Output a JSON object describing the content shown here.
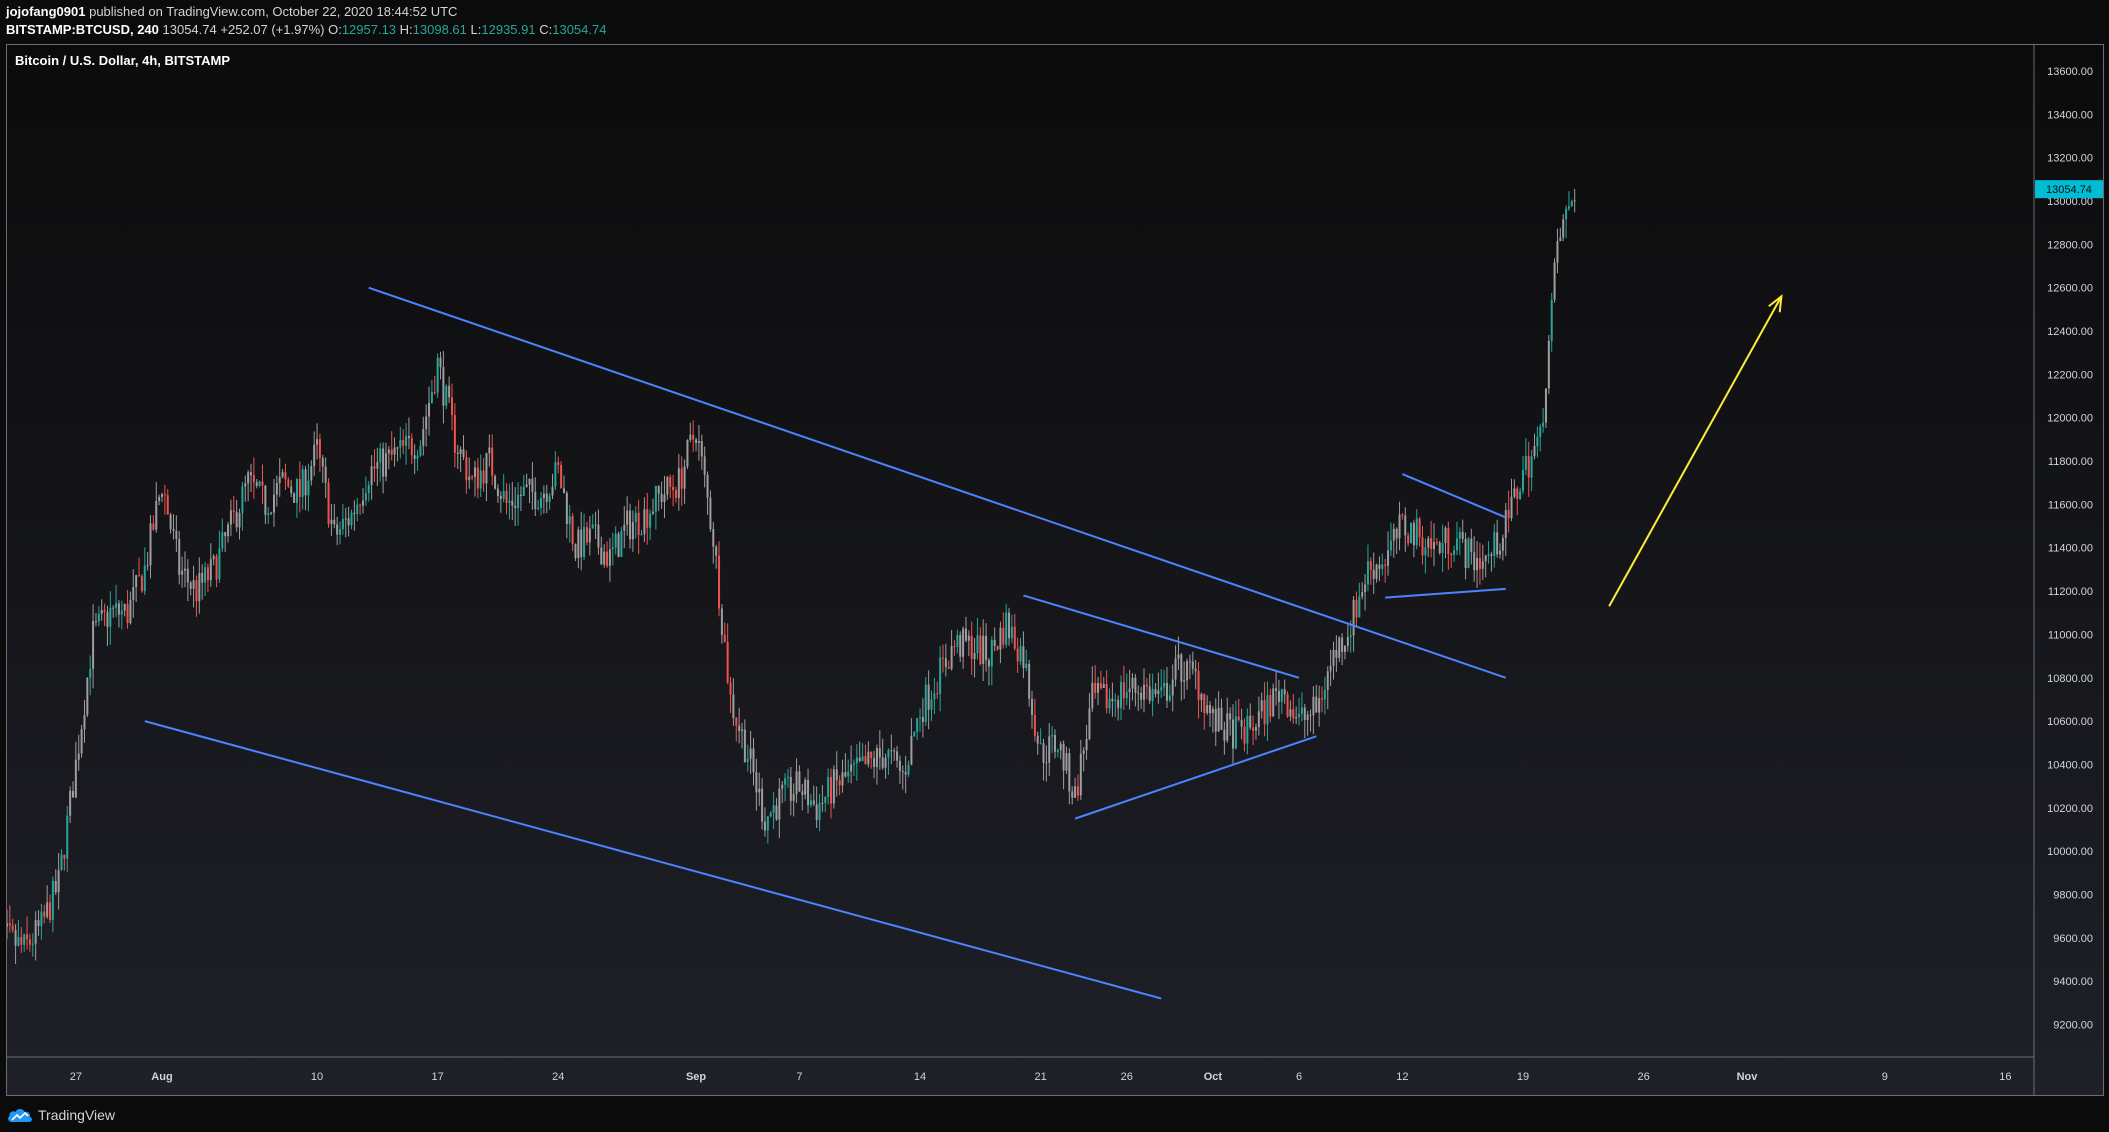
{
  "header": {
    "author": "jojofang0901",
    "published_text": "published on TradingView.com, October 22, 2020 18:44:52 UTC",
    "symbol": "BITSTAMP:BTCUSD, 240",
    "last_price": "13054.74",
    "change": "+252.07 (+1.97%)",
    "open_label": "O:",
    "open": "12957.13",
    "high_label": "H:",
    "high": "13098.61",
    "low_label": "L:",
    "low": "12935.91",
    "close_label": "C:",
    "close": "13054.74"
  },
  "footer": {
    "brand": "TradingView"
  },
  "colors": {
    "background_top": "#0b0b0b",
    "background_bottom": "#1f2028",
    "up_candle": "#26a69a",
    "down_candle": "#ef5350",
    "neutral_candle": "#9e9e9e",
    "trendline": "#4c84ff",
    "arrow": "#ffeb3b",
    "price_tag": "#00bcd4"
  },
  "chart_data": {
    "type": "candlestick",
    "title": "Bitcoin / U.S. Dollar, 4h, BITSTAMP",
    "timeframe": "4h",
    "price_label": "13054.74",
    "ylim": [
      9050,
      13720
    ],
    "y_ticks": [
      "13600.00",
      "13400.00",
      "13200.00",
      "13000.00",
      "12800.00",
      "12600.00",
      "12400.00",
      "12200.00",
      "12000.00",
      "11800.00",
      "11600.00",
      "11400.00",
      "11200.00",
      "11000.00",
      "10800.00",
      "10600.00",
      "10400.00",
      "10200.00",
      "10000.00",
      "9800.00",
      "9600.00",
      "9400.00",
      "9200.00"
    ],
    "x_ticks": [
      {
        "label": "27",
        "date": "2020-07-27"
      },
      {
        "label": "Aug",
        "date": "2020-08-01"
      },
      {
        "label": "10",
        "date": "2020-08-10"
      },
      {
        "label": "17",
        "date": "2020-08-17"
      },
      {
        "label": "24",
        "date": "2020-08-24"
      },
      {
        "label": "Sep",
        "date": "2020-09-01"
      },
      {
        "label": "7",
        "date": "2020-09-07"
      },
      {
        "label": "14",
        "date": "2020-09-14"
      },
      {
        "label": "21",
        "date": "2020-09-21"
      },
      {
        "label": "26",
        "date": "2020-09-26"
      },
      {
        "label": "Oct",
        "date": "2020-10-01"
      },
      {
        "label": "6",
        "date": "2020-10-06"
      },
      {
        "label": "12",
        "date": "2020-10-12"
      },
      {
        "label": "19",
        "date": "2020-10-19"
      },
      {
        "label": "26",
        "date": "2020-10-26"
      },
      {
        "label": "Nov",
        "date": "2020-11-01"
      },
      {
        "label": "9",
        "date": "2020-11-09"
      },
      {
        "label": "16",
        "date": "2020-11-16"
      }
    ],
    "close_path": [
      [
        "2020-07-22",
        9500
      ],
      [
        "2020-07-23",
        9600
      ],
      [
        "2020-07-24",
        9550
      ],
      [
        "2020-07-25",
        9650
      ],
      [
        "2020-07-26",
        9850
      ],
      [
        "2020-07-27",
        10400
      ],
      [
        "2020-07-28",
        11000
      ],
      [
        "2020-07-29",
        11100
      ],
      [
        "2020-07-30",
        11100
      ],
      [
        "2020-07-31",
        11300
      ],
      [
        "2020-08-01",
        11700
      ],
      [
        "2020-08-02",
        11300
      ],
      [
        "2020-08-03",
        11200
      ],
      [
        "2020-08-04",
        11300
      ],
      [
        "2020-08-05",
        11500
      ],
      [
        "2020-08-06",
        11700
      ],
      [
        "2020-08-07",
        11600
      ],
      [
        "2020-08-08",
        11700
      ],
      [
        "2020-08-09",
        11650
      ],
      [
        "2020-08-10",
        11850
      ],
      [
        "2020-08-11",
        11450
      ],
      [
        "2020-08-12",
        11550
      ],
      [
        "2020-08-13",
        11750
      ],
      [
        "2020-08-14",
        11800
      ],
      [
        "2020-08-15",
        11850
      ],
      [
        "2020-08-16",
        11900
      ],
      [
        "2020-08-17",
        12250
      ],
      [
        "2020-08-18",
        11900
      ],
      [
        "2020-08-19",
        11700
      ],
      [
        "2020-08-20",
        11800
      ],
      [
        "2020-08-21",
        11600
      ],
      [
        "2020-08-22",
        11650
      ],
      [
        "2020-08-23",
        11650
      ],
      [
        "2020-08-24",
        11750
      ],
      [
        "2020-08-25",
        11400
      ],
      [
        "2020-08-26",
        11450
      ],
      [
        "2020-08-27",
        11350
      ],
      [
        "2020-08-28",
        11500
      ],
      [
        "2020-08-29",
        11550
      ],
      [
        "2020-08-30",
        11650
      ],
      [
        "2020-08-31",
        11700
      ],
      [
        "2020-09-01",
        11950
      ],
      [
        "2020-09-02",
        11450
      ],
      [
        "2020-09-03",
        10700
      ],
      [
        "2020-09-04",
        10450
      ],
      [
        "2020-09-05",
        10150
      ],
      [
        "2020-09-06",
        10250
      ],
      [
        "2020-09-07",
        10300
      ],
      [
        "2020-09-08",
        10200
      ],
      [
        "2020-09-09",
        10300
      ],
      [
        "2020-09-10",
        10350
      ],
      [
        "2020-09-11",
        10400
      ],
      [
        "2020-09-12",
        10450
      ],
      [
        "2020-09-13",
        10350
      ],
      [
        "2020-09-14",
        10650
      ],
      [
        "2020-09-15",
        10800
      ],
      [
        "2020-09-16",
        10950
      ],
      [
        "2020-09-17",
        10950
      ],
      [
        "2020-09-18",
        10900
      ],
      [
        "2020-09-19",
        11050
      ],
      [
        "2020-09-20",
        10900
      ],
      [
        "2020-09-21",
        10450
      ],
      [
        "2020-09-22",
        10500
      ],
      [
        "2020-09-23",
        10250
      ],
      [
        "2020-09-24",
        10700
      ],
      [
        "2020-09-25",
        10700
      ],
      [
        "2020-09-26",
        10750
      ],
      [
        "2020-09-27",
        10750
      ],
      [
        "2020-09-28",
        10700
      ],
      [
        "2020-09-29",
        10850
      ],
      [
        "2020-09-30",
        10800
      ],
      [
        "2020-10-01",
        10600
      ],
      [
        "2020-10-02",
        10550
      ],
      [
        "2020-10-03",
        10550
      ],
      [
        "2020-10-04",
        10650
      ],
      [
        "2020-10-05",
        10750
      ],
      [
        "2020-10-06",
        10600
      ],
      [
        "2020-10-07",
        10650
      ],
      [
        "2020-10-08",
        10900
      ],
      [
        "2020-10-09",
        11050
      ],
      [
        "2020-10-10",
        11300
      ],
      [
        "2020-10-11",
        11350
      ],
      [
        "2020-10-12",
        11500
      ],
      [
        "2020-10-13",
        11450
      ],
      [
        "2020-10-14",
        11400
      ],
      [
        "2020-10-15",
        11450
      ],
      [
        "2020-10-16",
        11350
      ],
      [
        "2020-10-17",
        11350
      ],
      [
        "2020-10-18",
        11500
      ],
      [
        "2020-10-19",
        11750
      ],
      [
        "2020-10-20",
        11900
      ],
      [
        "2020-10-21",
        12800
      ],
      [
        "2020-10-22",
        13054
      ]
    ],
    "annotations": [
      {
        "type": "trendline",
        "name": "upper channel",
        "points": [
          [
            "2020-08-13",
            12600
          ],
          [
            "2020-10-18",
            10800
          ]
        ]
      },
      {
        "type": "trendline",
        "name": "lower channel",
        "points": [
          [
            "2020-07-31",
            10600
          ],
          [
            "2020-09-28",
            9320
          ]
        ]
      },
      {
        "type": "trendline",
        "name": "triangle top",
        "points": [
          [
            "2020-09-20",
            11180
          ],
          [
            "2020-10-06",
            10800
          ]
        ]
      },
      {
        "type": "trendline",
        "name": "triangle bottom",
        "points": [
          [
            "2020-09-23",
            10150
          ],
          [
            "2020-10-07",
            10530
          ]
        ]
      },
      {
        "type": "trendline",
        "name": "flag top",
        "points": [
          [
            "2020-10-12",
            11740
          ],
          [
            "2020-10-18",
            11540
          ]
        ]
      },
      {
        "type": "trendline",
        "name": "flag bottom",
        "points": [
          [
            "2020-10-11",
            11170
          ],
          [
            "2020-10-18",
            11210
          ]
        ]
      },
      {
        "type": "arrow",
        "name": "projection",
        "points": [
          [
            "2020-10-24",
            11130
          ],
          [
            "2020-11-03",
            12560
          ]
        ]
      }
    ]
  }
}
